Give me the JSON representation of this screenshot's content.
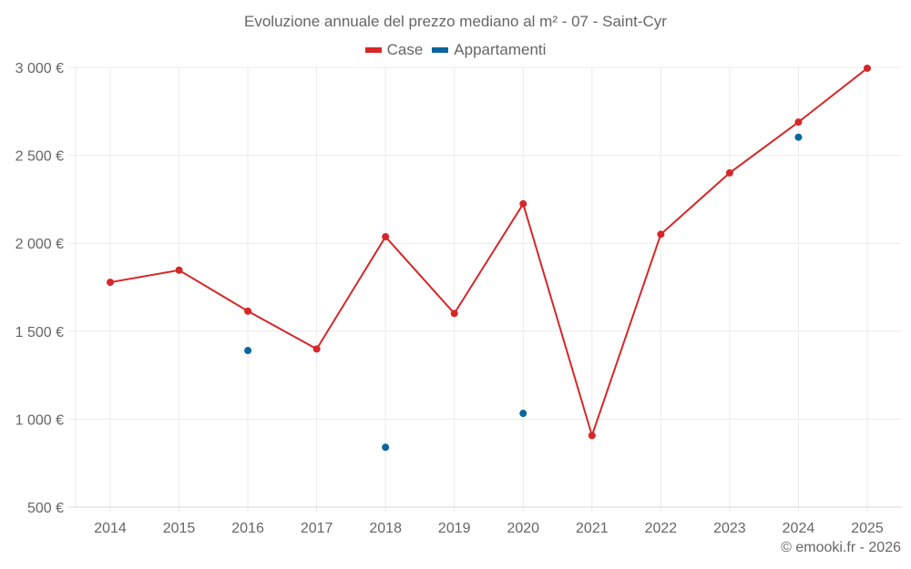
{
  "header": {
    "title": "Evoluzione annuale del prezzo mediano al m² - 07 - Saint-Cyr"
  },
  "legend": [
    {
      "label": "Case",
      "color": "#d62728"
    },
    {
      "label": "Appartamenti",
      "color": "#0a66a0"
    }
  ],
  "footer": {
    "credit": "© emooki.fr - 2026"
  },
  "chart_data": {
    "type": "line",
    "title": "Evoluzione annuale del prezzo mediano al m² - 07 - Saint-Cyr",
    "xlabel": "",
    "ylabel": "",
    "categories": [
      "2014",
      "2015",
      "2016",
      "2017",
      "2018",
      "2019",
      "2020",
      "2021",
      "2022",
      "2023",
      "2024",
      "2025"
    ],
    "ylim": [
      500,
      3000
    ],
    "yticks": [
      500,
      1000,
      1500,
      2000,
      2500,
      3000
    ],
    "ytick_labels": [
      "500 €",
      "1 000 €",
      "1 500 €",
      "2 000 €",
      "2 500 €",
      "3 000 €"
    ],
    "grid": true,
    "legend_position": "top",
    "series": [
      {
        "name": "Case",
        "color": "#d62728",
        "mode": "lines+markers",
        "values": [
          1778,
          1847,
          1614,
          1399,
          2037,
          1601,
          2224,
          907,
          2051,
          2400,
          2689,
          2995
        ]
      },
      {
        "name": "Appartamenti",
        "color": "#0a66a0",
        "mode": "markers",
        "values": [
          null,
          null,
          1390,
          null,
          840,
          null,
          1033,
          null,
          null,
          null,
          2603,
          null
        ]
      }
    ]
  }
}
